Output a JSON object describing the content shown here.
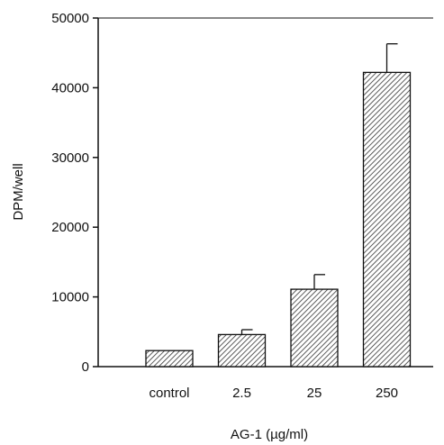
{
  "chart_data": {
    "type": "bar",
    "categories": [
      "control",
      "2.5",
      "25",
      "250"
    ],
    "values": [
      2300,
      4600,
      11100,
      42200
    ],
    "error_bars": [
      0,
      700,
      2100,
      4100
    ],
    "title": "",
    "xlabel": "AG-1 (µg/ml)",
    "ylabel": "DPM/well",
    "ylim": [
      0,
      50000
    ],
    "y_ticks": [
      0,
      10000,
      20000,
      30000,
      40000,
      50000
    ],
    "y_tick_labels": [
      "0",
      "10000",
      "20000",
      "30000",
      "40000",
      "50000"
    ],
    "grid": false,
    "bar_fill": "hatched",
    "colors": {
      "axis": "#111111",
      "bar_stroke": "#111111",
      "hatch": "#333333"
    }
  }
}
